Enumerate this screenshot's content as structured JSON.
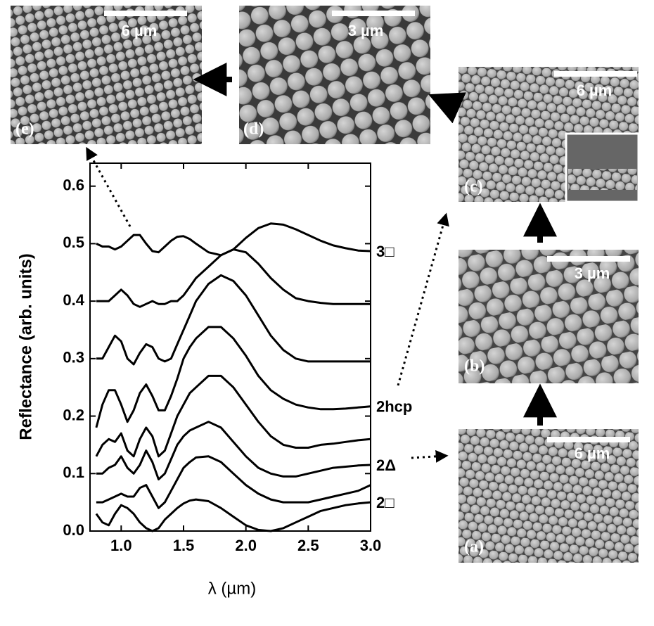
{
  "chart_data": {
    "type": "line",
    "x_label": "λ (µm)",
    "y_label": "Reflectance (arb. units)",
    "xlim": [
      0.75,
      3.0
    ],
    "ylim": [
      0,
      0.64
    ],
    "xticks": [
      {
        "value": 1,
        "label": "1.0"
      },
      1.5,
      {
        "value": 2,
        "label": "2.0"
      },
      2.5,
      {
        "value": 3,
        "label": "3.0"
      }
    ],
    "yticks": [
      {
        "value": 0,
        "label": "0.0"
      },
      0.1,
      0.2,
      0.3,
      0.4,
      0.5,
      0.6
    ],
    "x": [
      0.8,
      0.85,
      0.9,
      0.95,
      1.0,
      1.05,
      1.1,
      1.15,
      1.2,
      1.25,
      1.3,
      1.35,
      1.4,
      1.45,
      1.5,
      1.55,
      1.6,
      1.7,
      1.8,
      1.9,
      2.0,
      2.1,
      2.2,
      2.3,
      2.4,
      2.5,
      2.6,
      2.7,
      2.8,
      2.9,
      3.0
    ],
    "series": [
      {
        "name": "2□",
        "color": "#000",
        "values": [
          0.03,
          0.015,
          0.01,
          0.03,
          0.045,
          0.04,
          0.03,
          0.015,
          0.005,
          0.0,
          0.005,
          0.02,
          0.03,
          0.04,
          0.048,
          0.053,
          0.055,
          0.052,
          0.04,
          0.025,
          0.01,
          0.002,
          0.0,
          0.005,
          0.015,
          0.025,
          0.035,
          0.04,
          0.045,
          0.048,
          0.05
        ]
      },
      {
        "color": "#000",
        "values": [
          0.05,
          0.05,
          0.055,
          0.06,
          0.065,
          0.06,
          0.06,
          0.075,
          0.08,
          0.06,
          0.04,
          0.05,
          0.07,
          0.09,
          0.11,
          0.12,
          0.128,
          0.13,
          0.12,
          0.1,
          0.08,
          0.065,
          0.055,
          0.05,
          0.05,
          0.05,
          0.055,
          0.06,
          0.065,
          0.07,
          0.08
        ]
      },
      {
        "name": "2Δ",
        "color": "#000",
        "values": [
          0.1,
          0.1,
          0.11,
          0.115,
          0.13,
          0.11,
          0.1,
          0.115,
          0.14,
          0.12,
          0.09,
          0.1,
          0.125,
          0.15,
          0.165,
          0.175,
          0.18,
          0.19,
          0.18,
          0.155,
          0.13,
          0.11,
          0.1,
          0.095,
          0.095,
          0.1,
          0.105,
          0.11,
          0.112,
          0.114,
          0.115
        ]
      },
      {
        "color": "#000",
        "values": [
          0.13,
          0.15,
          0.16,
          0.155,
          0.17,
          0.14,
          0.13,
          0.16,
          0.18,
          0.165,
          0.13,
          0.14,
          0.17,
          0.2,
          0.22,
          0.24,
          0.25,
          0.27,
          0.27,
          0.25,
          0.22,
          0.19,
          0.165,
          0.15,
          0.145,
          0.145,
          0.15,
          0.152,
          0.155,
          0.158,
          0.16
        ]
      },
      {
        "name": "2hcp",
        "color": "#000",
        "values": [
          0.18,
          0.22,
          0.245,
          0.245,
          0.22,
          0.19,
          0.21,
          0.24,
          0.255,
          0.235,
          0.21,
          0.21,
          0.235,
          0.265,
          0.3,
          0.32,
          0.335,
          0.355,
          0.355,
          0.335,
          0.305,
          0.27,
          0.245,
          0.23,
          0.22,
          0.215,
          0.212,
          0.212,
          0.213,
          0.215,
          0.217
        ]
      },
      {
        "color": "#000",
        "values": [
          0.3,
          0.3,
          0.32,
          0.34,
          0.33,
          0.3,
          0.29,
          0.31,
          0.325,
          0.32,
          0.3,
          0.295,
          0.3,
          0.325,
          0.35,
          0.375,
          0.4,
          0.43,
          0.445,
          0.435,
          0.41,
          0.375,
          0.34,
          0.315,
          0.3,
          0.295,
          0.295,
          0.295,
          0.295,
          0.295,
          0.295
        ]
      },
      {
        "color": "#000",
        "values": [
          0.4,
          0.4,
          0.4,
          0.41,
          0.42,
          0.41,
          0.395,
          0.39,
          0.395,
          0.4,
          0.395,
          0.395,
          0.4,
          0.4,
          0.41,
          0.425,
          0.44,
          0.46,
          0.48,
          0.49,
          0.485,
          0.465,
          0.44,
          0.42,
          0.405,
          0.4,
          0.397,
          0.395,
          0.395,
          0.395,
          0.395
        ]
      },
      {
        "name": "3□",
        "color": "#000",
        "values": [
          0.5,
          0.495,
          0.495,
          0.49,
          0.495,
          0.505,
          0.515,
          0.515,
          0.5,
          0.487,
          0.485,
          0.495,
          0.505,
          0.512,
          0.513,
          0.508,
          0.5,
          0.485,
          0.48,
          0.49,
          0.51,
          0.527,
          0.535,
          0.533,
          0.525,
          0.515,
          0.505,
          0.497,
          0.492,
          0.488,
          0.487
        ]
      }
    ]
  },
  "micrographs": [
    {
      "label": "(a)",
      "scale": "6 µm"
    },
    {
      "label": "(b)",
      "scale": "3 µm"
    },
    {
      "label": "(c)",
      "scale": "6 µm"
    },
    {
      "label": "(d)",
      "scale": "3 µm"
    },
    {
      "label": "(e)",
      "scale": "6 µm"
    }
  ]
}
